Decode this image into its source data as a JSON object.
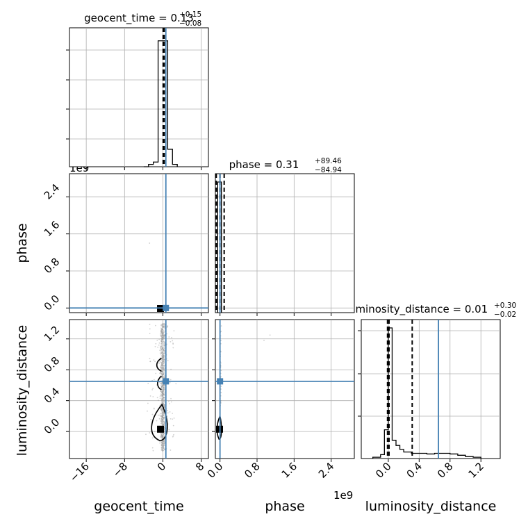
{
  "titles": {
    "geocent_time": {
      "name": "geocent_time",
      "value": "0.13",
      "plus": "+0.15",
      "minus": "−0.08"
    },
    "phase": {
      "name": "phase",
      "value": "0.31",
      "plus": "+89.46",
      "minus": "−84.94"
    },
    "luminosity_distance": {
      "name": "luminosity_distance",
      "value": "0.01",
      "plus": "+0.30",
      "minus": "−0.02"
    }
  },
  "axis_labels": {
    "x_geocent_time": "geocent_time",
    "x_phase": "phase",
    "x_luminosity_distance": "luminosity_distance",
    "y_phase": "phase",
    "y_luminosity_distance": "luminosity_distance"
  },
  "offset_labels": {
    "phase_row": "1e9",
    "phase_col": "1e9"
  },
  "colors": {
    "truth": "#4682b4",
    "hist": "#000000",
    "grid": "#b0b0b0",
    "scatter": "#9a9a9a"
  },
  "chart_data": {
    "type": "corner",
    "parameters": [
      "geocent_time",
      "phase",
      "luminosity_distance"
    ],
    "truths": {
      "geocent_time": 0.62,
      "phase": 0.0,
      "luminosity_distance": 0.65
    },
    "ranges": {
      "geocent_time": [
        -19.5,
        9.5
      ],
      "phase": [
        -0.1,
        2.9
      ],
      "luminosity_distance": [
        -0.35,
        1.45
      ]
    },
    "ticks": {
      "geocent_time": {
        "values": [
          -16,
          -8,
          0,
          8
        ],
        "labels": [
          "−16",
          "−8",
          "0",
          "8"
        ]
      },
      "phase": {
        "values": [
          0.0,
          0.8,
          1.6,
          2.4
        ],
        "labels": [
          "0.0",
          "0.8",
          "1.6",
          "2.4"
        ]
      },
      "luminosity_distance": {
        "values": [
          0.0,
          0.4,
          0.8,
          1.2
        ],
        "labels": [
          "0.0",
          "0.4",
          "0.8",
          "1.2"
        ]
      }
    },
    "hist_geocent_time": {
      "edges": [
        -4,
        -3,
        -2,
        -1,
        0,
        1,
        2,
        3
      ],
      "counts": [
        0.0,
        0.02,
        0.04,
        1.08,
        1.08,
        0.15,
        0.02
      ]
    },
    "hist_phase": {
      "edges": [
        -0.05,
        0.0,
        0.03
      ],
      "counts": [
        1.0,
        1.0
      ]
    },
    "hist_luminosity_distance": {
      "edges": [
        -0.2,
        -0.1,
        -0.05,
        0.0,
        0.05,
        0.1,
        0.15,
        0.2,
        0.3,
        0.4,
        0.5,
        0.6,
        0.7,
        0.8,
        0.9,
        1.0,
        1.1,
        1.2
      ],
      "counts": [
        0.01,
        0.03,
        0.22,
        1.0,
        0.14,
        0.1,
        0.07,
        0.05,
        0.04,
        0.04,
        0.035,
        0.04,
        0.04,
        0.035,
        0.025,
        0.015,
        0.01
      ]
    },
    "quantiles": {
      "geocent_time": [
        0.05,
        0.13,
        0.28
      ],
      "phase": [
        -0.08,
        0.0,
        0.09
      ],
      "luminosity_distance": [
        -0.01,
        0.01,
        0.31
      ]
    },
    "medians_2d": {
      "geocent_time_vs_phase": [
        -0.5,
        -0.01
      ],
      "geocent_time_vs_luminosity_distance": [
        -0.5,
        0.03
      ],
      "phase_vs_luminosity_distance": [
        -0.01,
        0.03
      ]
    },
    "grid": true
  }
}
